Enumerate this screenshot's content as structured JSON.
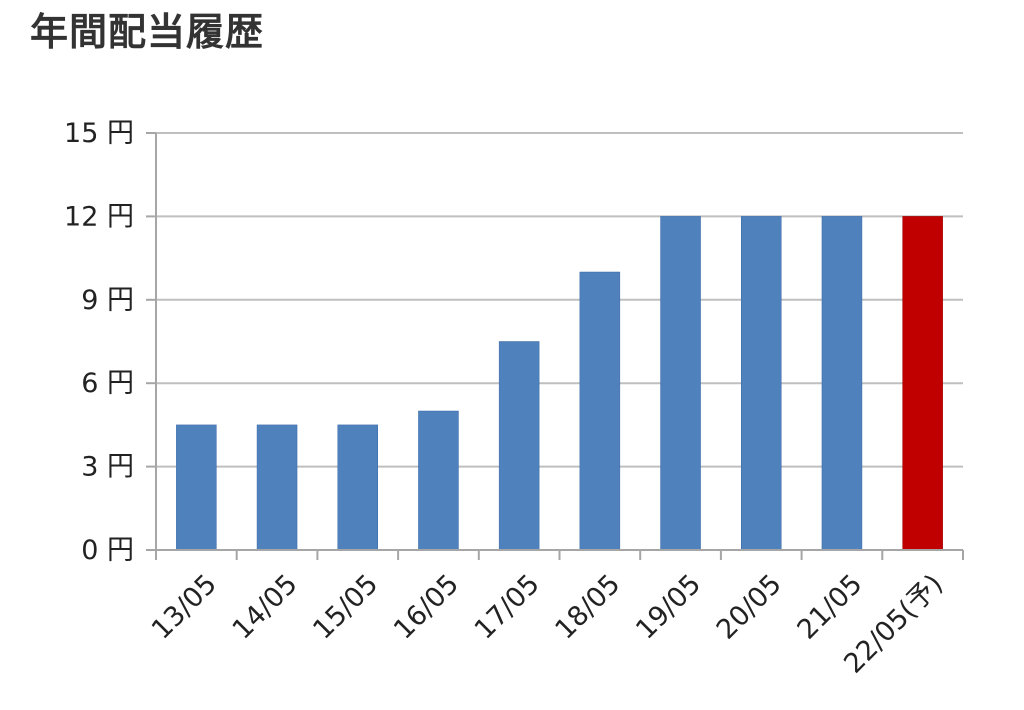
{
  "page": {
    "title": "年間配当履歴"
  },
  "chart_data": {
    "type": "bar",
    "title": "",
    "xlabel": "",
    "ylabel": "",
    "ylim": [
      0,
      15
    ],
    "y_ticks": [
      0,
      3,
      6,
      9,
      12,
      15
    ],
    "y_tick_labels": [
      "0 円",
      "3 円",
      "6 円",
      "9 円",
      "12 円",
      "15 円"
    ],
    "grid": true,
    "categories": [
      "13/05",
      "14/05",
      "15/05",
      "16/05",
      "17/05",
      "18/05",
      "19/05",
      "20/05",
      "21/05",
      "22/05(予)"
    ],
    "values": [
      4.5,
      4.5,
      4.5,
      5.0,
      7.5,
      10.0,
      12.0,
      12.0,
      12.0,
      12.0
    ],
    "bar_colors": [
      "#4F81BD",
      "#4F81BD",
      "#4F81BD",
      "#4F81BD",
      "#4F81BD",
      "#4F81BD",
      "#4F81BD",
      "#4F81BD",
      "#4F81BD",
      "#C00000"
    ],
    "colors": {
      "actual": "#4F81BD",
      "forecast": "#C00000",
      "grid": "#BFBFBF",
      "axis": "#A6A6A6"
    }
  }
}
